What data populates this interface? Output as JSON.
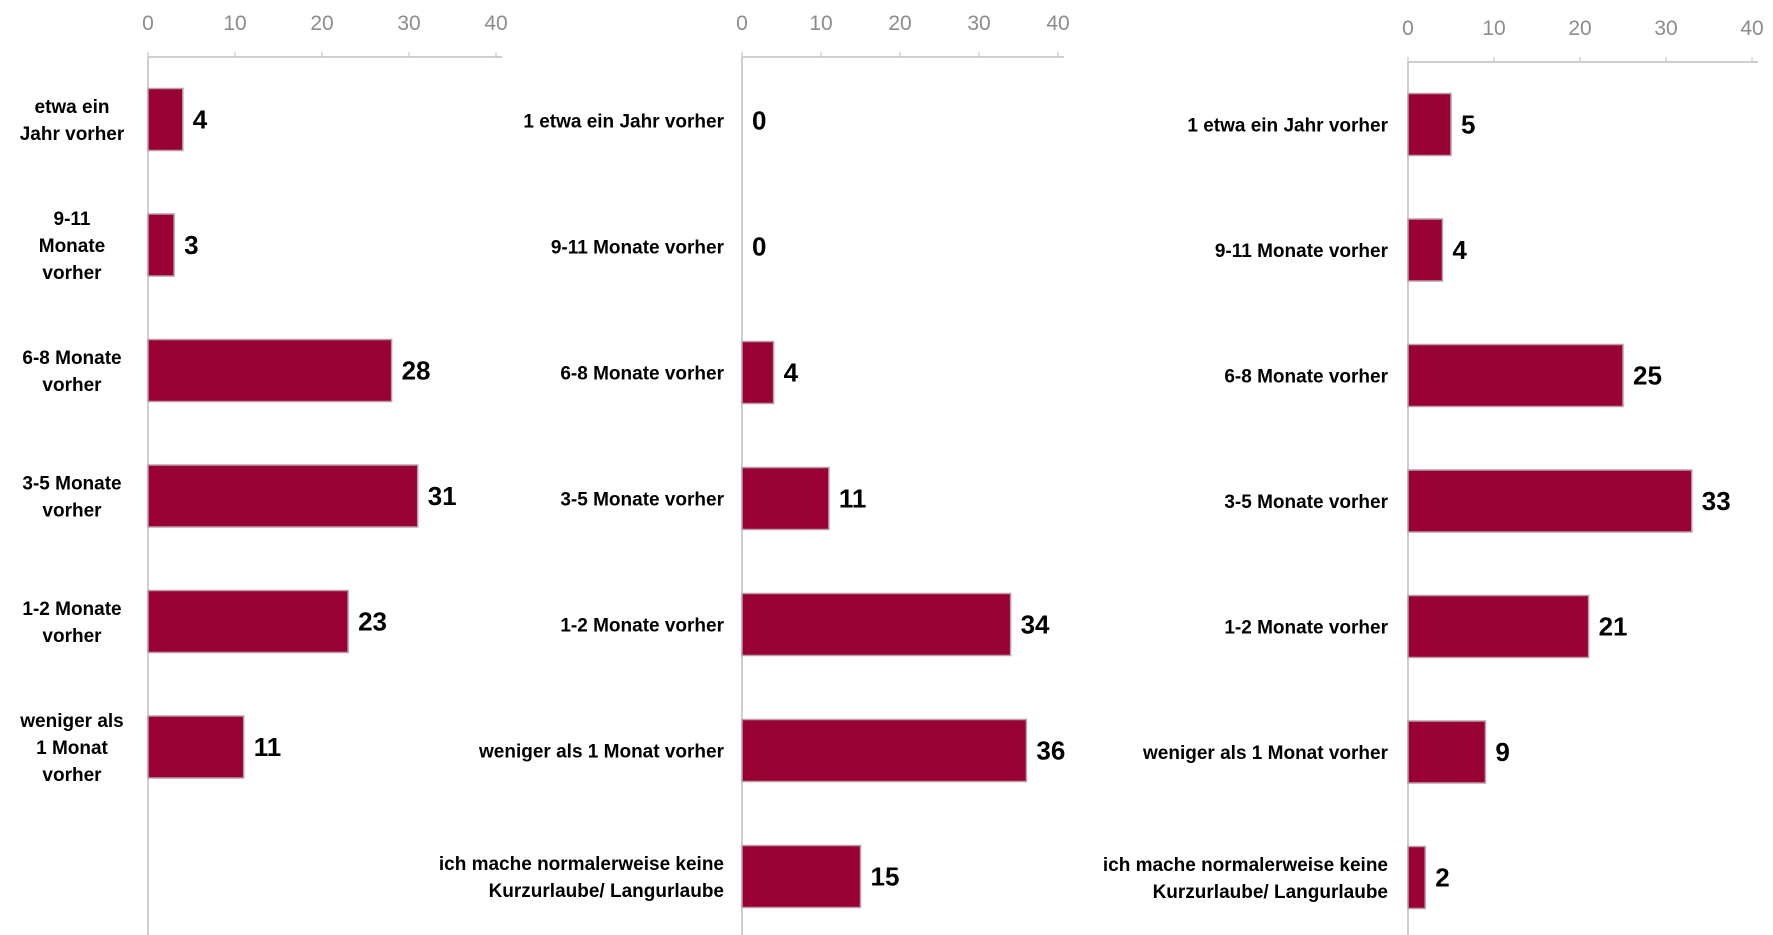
{
  "colors": {
    "bar": "#990033",
    "bar_border": "#b8a0a8",
    "axis": "#bfbfbf",
    "tick_text": "#8c8c8c"
  },
  "chart_data": [
    {
      "type": "bar",
      "orientation": "horizontal",
      "xlim": [
        0,
        40
      ],
      "xticks": [
        "0",
        "10",
        "20",
        "30",
        "40"
      ],
      "categories": [
        [
          "etwa ein",
          "Jahr vorher"
        ],
        [
          "9-11",
          "Monate",
          "vorher"
        ],
        [
          "6-8 Monate",
          "vorher"
        ],
        [
          "3-5 Monate",
          "vorher"
        ],
        [
          "1-2 Monate",
          "vorher"
        ],
        [
          "weniger als",
          "1 Monat",
          "vorher"
        ]
      ],
      "values": [
        4,
        3,
        28,
        31,
        23,
        11
      ],
      "value_labels": [
        "4",
        "3",
        "28",
        "31",
        "23",
        "11"
      ],
      "grid": false
    },
    {
      "type": "bar",
      "orientation": "horizontal",
      "xlim": [
        0,
        40
      ],
      "xticks": [
        "0",
        "10",
        "20",
        "30",
        "40"
      ],
      "categories": [
        [
          "1  etwa ein Jahr vorher"
        ],
        [
          "9-11 Monate vorher"
        ],
        [
          "6-8 Monate vorher"
        ],
        [
          "3-5 Monate vorher"
        ],
        [
          "1-2 Monate vorher"
        ],
        [
          "weniger als 1 Monat vorher"
        ],
        [
          "ich mache normalerweise keine",
          "Kurzurlaube/ Langurlaube"
        ]
      ],
      "values": [
        0,
        0,
        4,
        11,
        34,
        36,
        15
      ],
      "value_labels": [
        "0",
        "0",
        "4",
        "11",
        "34",
        "36",
        "15"
      ],
      "grid": false
    },
    {
      "type": "bar",
      "orientation": "horizontal",
      "xlim": [
        0,
        40
      ],
      "xticks": [
        "0",
        "10",
        "20",
        "30",
        "40"
      ],
      "categories": [
        [
          "1  etwa ein Jahr vorher"
        ],
        [
          "9-11 Monate vorher"
        ],
        [
          "6-8 Monate vorher"
        ],
        [
          "3-5 Monate vorher"
        ],
        [
          "1-2 Monate vorher"
        ],
        [
          "weniger als 1 Monat vorher"
        ],
        [
          "ich mache normalerweise keine",
          "Kurzurlaube/ Langurlaube"
        ]
      ],
      "values": [
        5,
        4,
        25,
        33,
        21,
        9,
        2
      ],
      "value_labels": [
        "5",
        "4",
        "25",
        "33",
        "21",
        "9",
        "2"
      ],
      "grid": false
    }
  ]
}
